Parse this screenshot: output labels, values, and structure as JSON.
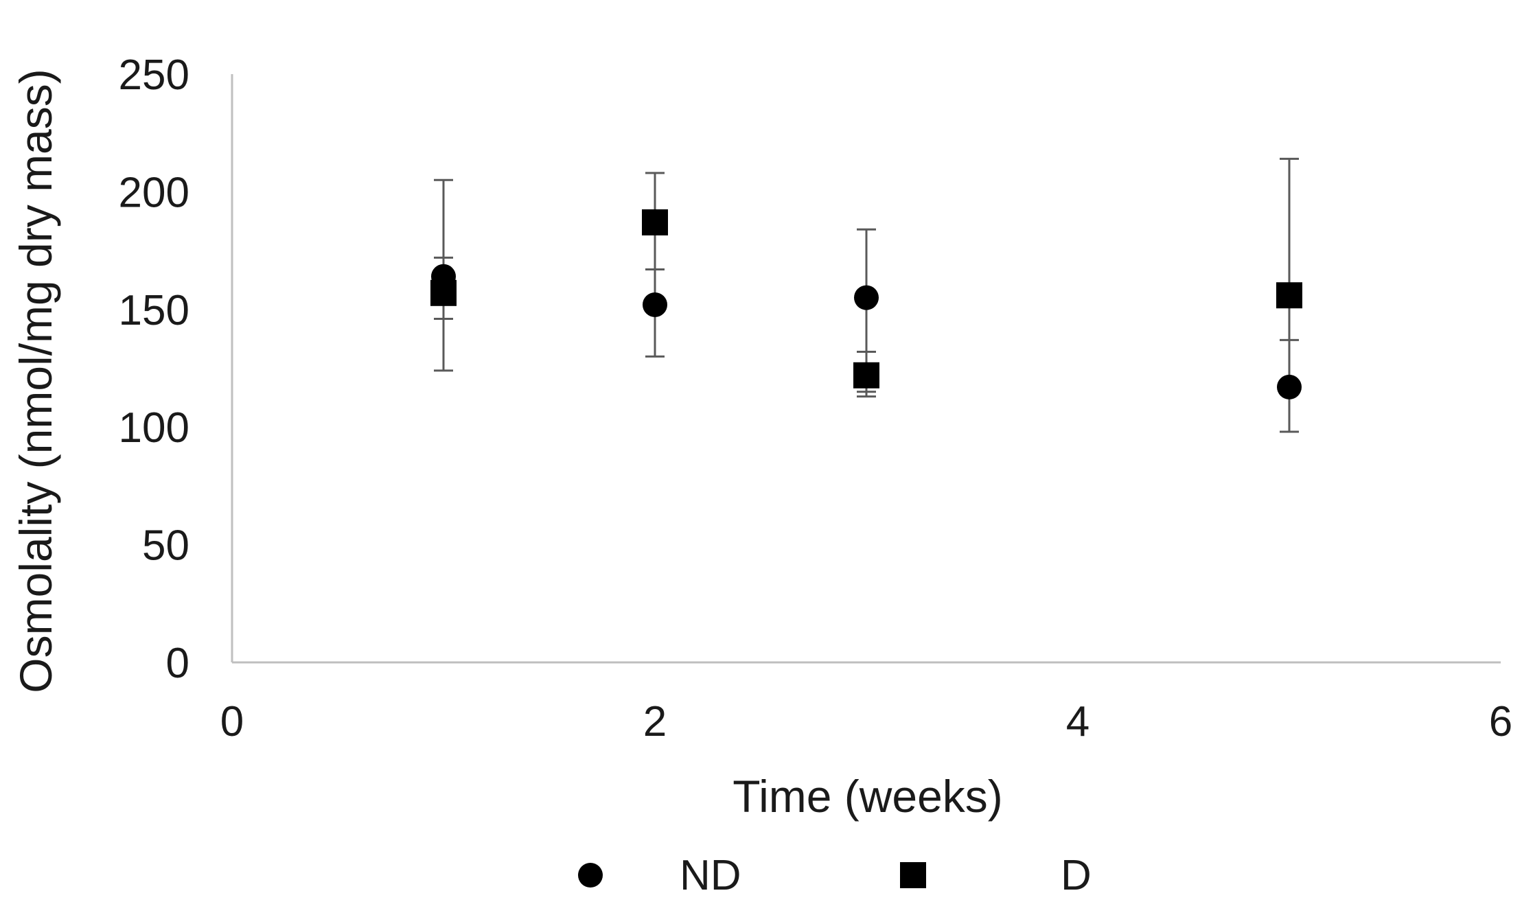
{
  "chart_data": {
    "type": "scatter",
    "title": "",
    "xlabel": "Time (weeks)",
    "ylabel": "Osmolality (nmol/mg dry mass)",
    "xlim": [
      0,
      6
    ],
    "ylim": [
      0,
      250
    ],
    "xticks": [
      0,
      2,
      4,
      6
    ],
    "yticks": [
      0,
      50,
      100,
      150,
      200,
      250
    ],
    "grid": false,
    "legend_position": "bottom",
    "series": [
      {
        "name": "ND",
        "marker": "circle",
        "color": "#000000",
        "x": [
          1,
          2,
          3,
          5
        ],
        "y": [
          164,
          152,
          155,
          117
        ],
        "err_low": [
          124,
          130,
          115,
          98
        ],
        "err_high": [
          205,
          208,
          184,
          137
        ]
      },
      {
        "name": "D",
        "marker": "square",
        "color": "#000000",
        "x": [
          1,
          2,
          3,
          5
        ],
        "y": [
          157,
          187,
          122,
          156
        ],
        "err_low": [
          146,
          167,
          113,
          98
        ],
        "err_high": [
          172,
          208,
          132,
          214
        ]
      }
    ],
    "axis_color": "#bfbfbf",
    "errorbar_color": "#595959"
  }
}
